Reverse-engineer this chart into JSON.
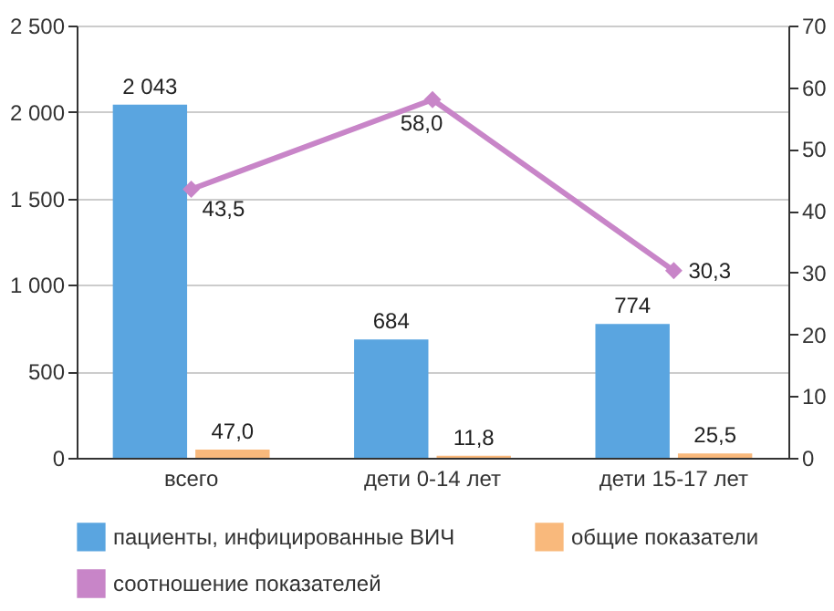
{
  "chart_data": {
    "type": "bar",
    "categories": [
      "всего",
      "дети 0-14 лет",
      "дети 15-17 лет"
    ],
    "series": [
      {
        "name": "пациенты, инфицированные ВИЧ",
        "color": "#5aa5e0",
        "values": [
          2043,
          684,
          774
        ],
        "value_labels": [
          "2 043",
          "684",
          "774"
        ]
      },
      {
        "name": "общие показатели",
        "color": "#f9b97c",
        "values": [
          47.0,
          11.8,
          25.5
        ],
        "value_labels": [
          "47,0",
          "11,8",
          "25,5"
        ]
      },
      {
        "name": "соотношение показателей",
        "type": "line",
        "axis": "y2",
        "color": "#c885c8",
        "values": [
          43.5,
          58.0,
          30.3
        ],
        "value_labels": [
          "43,5",
          "58,0",
          "30,3"
        ]
      }
    ],
    "ylim": [
      0,
      2500
    ],
    "yticks": [
      {
        "value": 0,
        "label": "0"
      },
      {
        "value": 500,
        "label": "500"
      },
      {
        "value": 1000,
        "label": "1 000"
      },
      {
        "value": 1500,
        "label": "1 500"
      },
      {
        "value": 2000,
        "label": "2 000"
      },
      {
        "value": 2500,
        "label": "2 500"
      }
    ],
    "y2lim": [
      0,
      70
    ],
    "y2ticks": [
      0,
      10,
      20,
      30,
      40,
      50,
      60,
      70
    ],
    "grid": "y",
    "legend": "bottom",
    "marker": "diamond"
  }
}
